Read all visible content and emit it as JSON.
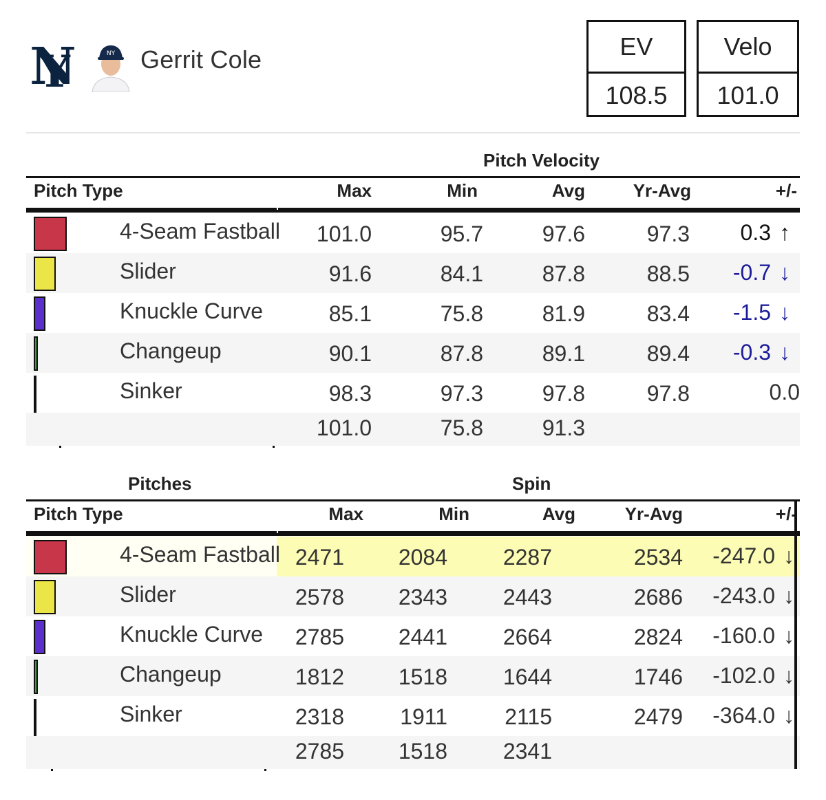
{
  "header": {
    "player_name": "Gerrit Cole",
    "team_logo_icon": "yankees-logo-icon",
    "avatar_icon": "player-headshot-icon",
    "stats": [
      {
        "label": "EV",
        "value": "108.5"
      },
      {
        "label": "Velo",
        "value": "101.0"
      }
    ]
  },
  "colors": {
    "4-Seam Fastball": "#c8364a",
    "Slider": "#ece548",
    "Knuckle Curve": "#5b2fcc",
    "Changeup": "#3aa33a",
    "Sinker": "#111111",
    "negative_delta": "#1c1c9a",
    "highlight": "#fcfcb4"
  },
  "chart_data": [
    {
      "type": "table",
      "title": "Pitch Velocity",
      "columns": [
        "Pitch Type",
        "Max",
        "Min",
        "Avg",
        "Yr-Avg",
        "+/-"
      ],
      "rows": [
        {
          "pitch": "4-Seam Fastball",
          "usage": 0.42,
          "max": "101.0",
          "min": "95.7",
          "avg": "97.6",
          "yr_avg": "97.3",
          "delta": "0.3",
          "dir": "up"
        },
        {
          "pitch": "Slider",
          "usage": 0.28,
          "max": "91.6",
          "min": "84.1",
          "avg": "87.8",
          "yr_avg": "88.5",
          "delta": "-0.7",
          "dir": "down"
        },
        {
          "pitch": "Knuckle Curve",
          "usage": 0.15,
          "max": "85.1",
          "min": "75.8",
          "avg": "81.9",
          "yr_avg": "83.4",
          "delta": "-1.5",
          "dir": "down"
        },
        {
          "pitch": "Changeup",
          "usage": 0.05,
          "max": "90.1",
          "min": "87.8",
          "avg": "89.1",
          "yr_avg": "89.4",
          "delta": "-0.3",
          "dir": "down"
        },
        {
          "pitch": "Sinker",
          "usage": 0.01,
          "max": "98.3",
          "min": "97.3",
          "avg": "97.8",
          "yr_avg": "97.8",
          "delta": "0.0",
          "dir": "none"
        }
      ],
      "totals": {
        "max": "101.0",
        "min": "75.8",
        "avg": "91.3"
      }
    },
    {
      "type": "table",
      "title": "Spin",
      "group_label": "Pitches",
      "columns": [
        "Pitch Type",
        "Max",
        "Min",
        "Avg",
        "Yr-Avg",
        "+/-"
      ],
      "rows": [
        {
          "pitch": "4-Seam Fastball",
          "usage": 0.42,
          "max": "2471",
          "min": "2084",
          "avg": "2287",
          "yr_avg": "2534",
          "delta": "-247.0",
          "dir": "down",
          "highlight": true
        },
        {
          "pitch": "Slider",
          "usage": 0.28,
          "max": "2578",
          "min": "2343",
          "avg": "2443",
          "yr_avg": "2686",
          "delta": "-243.0",
          "dir": "down"
        },
        {
          "pitch": "Knuckle Curve",
          "usage": 0.15,
          "max": "2785",
          "min": "2441",
          "avg": "2664",
          "yr_avg": "2824",
          "delta": "-160.0",
          "dir": "down"
        },
        {
          "pitch": "Changeup",
          "usage": 0.05,
          "max": "1812",
          "min": "1518",
          "avg": "1644",
          "yr_avg": "1746",
          "delta": "-102.0",
          "dir": "down"
        },
        {
          "pitch": "Sinker",
          "usage": 0.01,
          "max": "2318",
          "min": "1911",
          "avg": "2115",
          "yr_avg": "2479",
          "delta": "-364.0",
          "dir": "down"
        }
      ],
      "totals": {
        "max": "2785",
        "min": "1518",
        "avg": "2341"
      }
    }
  ]
}
